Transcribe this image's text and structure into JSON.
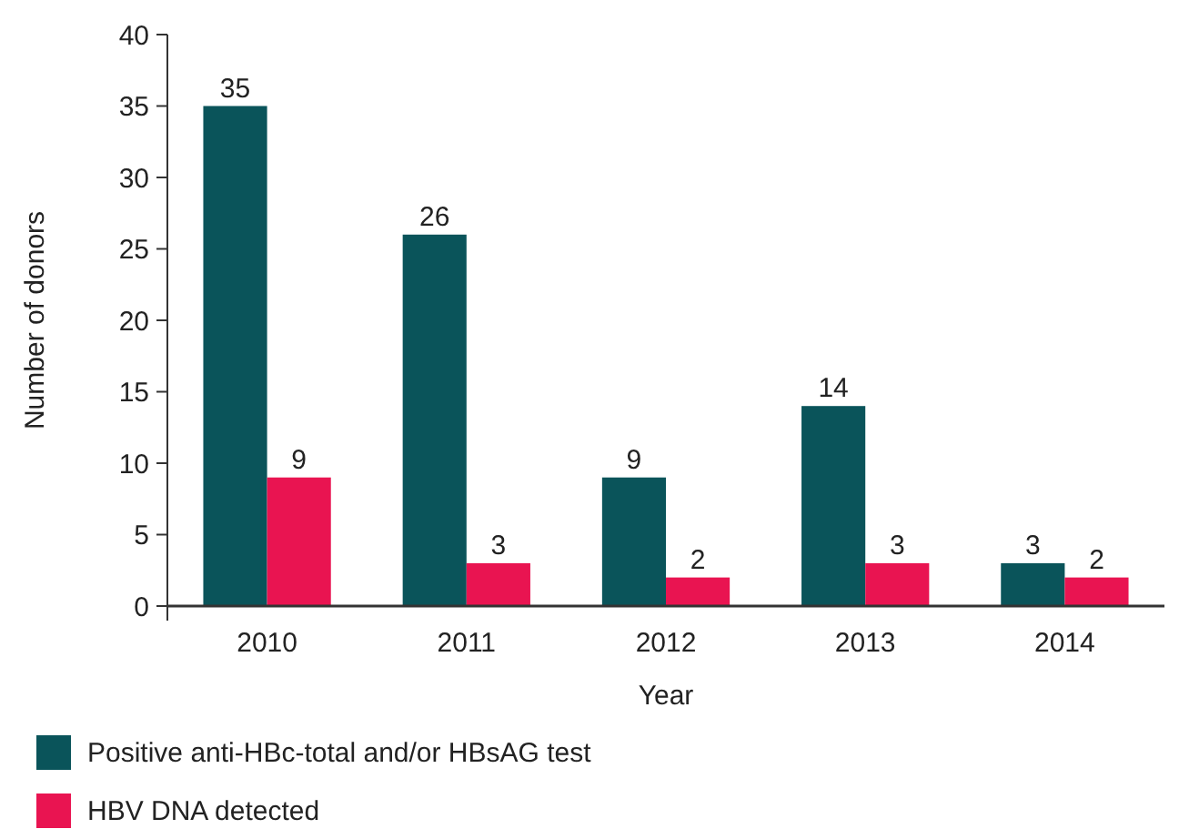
{
  "chart_data": {
    "type": "bar",
    "xlabel": "Year",
    "ylabel": "Number of donors",
    "categories": [
      "2010",
      "2011",
      "2012",
      "2013",
      "2014"
    ],
    "series": [
      {
        "name": "Positive anti-HBc-total and/or HBsAG test",
        "color": "#0a545a",
        "values": [
          35,
          26,
          9,
          14,
          3
        ]
      },
      {
        "name": "HBV DNA detected",
        "color": "#e91451",
        "values": [
          9,
          3,
          2,
          3,
          2
        ]
      }
    ],
    "ylim": [
      0,
      40
    ],
    "yticks": [
      0,
      5,
      10,
      15,
      20,
      25,
      30,
      35,
      40
    ],
    "grid": false,
    "data_labels": true,
    "legend": "bottom"
  }
}
